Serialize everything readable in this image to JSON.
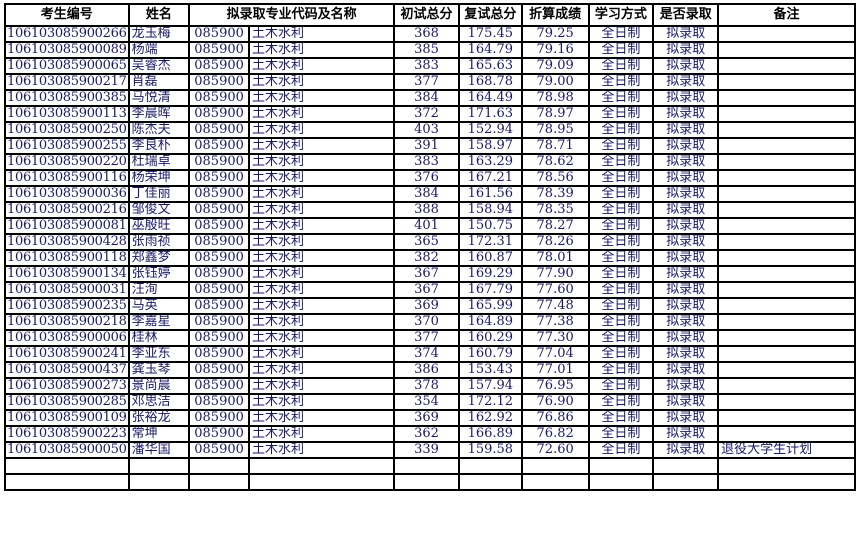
{
  "headers": [
    "考生编号",
    "姓名",
    "拟录取专业代码及名称",
    "初试总分",
    "复试总分",
    "折算成绩",
    "学习方式",
    "是否录取",
    "备注"
  ],
  "rows": [
    [
      "106103085900266",
      "龙玉梅",
      "085900",
      "土木水利",
      "368",
      "175.45",
      "79.25",
      "全日制",
      "拟录取",
      ""
    ],
    [
      "106103085900089",
      "杨端",
      "085900",
      "土木水利",
      "385",
      "164.79",
      "79.16",
      "全日制",
      "拟录取",
      ""
    ],
    [
      "106103085900065",
      "吴睿杰",
      "085900",
      "土木水利",
      "383",
      "165.63",
      "79.09",
      "全日制",
      "拟录取",
      ""
    ],
    [
      "106103085900217",
      "肖磊",
      "085900",
      "土木水利",
      "377",
      "168.78",
      "79.00",
      "全日制",
      "拟录取",
      ""
    ],
    [
      "106103085900385",
      "马悦清",
      "085900",
      "土木水利",
      "384",
      "164.49",
      "78.98",
      "全日制",
      "拟录取",
      ""
    ],
    [
      "106103085900113",
      "李晨晖",
      "085900",
      "土木水利",
      "372",
      "171.63",
      "78.97",
      "全日制",
      "拟录取",
      ""
    ],
    [
      "106103085900250",
      "陈杰夫",
      "085900",
      "土木水利",
      "403",
      "152.94",
      "78.95",
      "全日制",
      "拟录取",
      ""
    ],
    [
      "106103085900255",
      "李良朴",
      "085900",
      "土木水利",
      "391",
      "158.97",
      "78.71",
      "全日制",
      "拟录取",
      ""
    ],
    [
      "106103085900220",
      "杜瑞卓",
      "085900",
      "土木水利",
      "383",
      "163.29",
      "78.62",
      "全日制",
      "拟录取",
      ""
    ],
    [
      "106103085900116",
      "杨荣坤",
      "085900",
      "土木水利",
      "376",
      "167.21",
      "78.56",
      "全日制",
      "拟录取",
      ""
    ],
    [
      "106103085900036",
      "丁佳丽",
      "085900",
      "土木水利",
      "384",
      "161.56",
      "78.39",
      "全日制",
      "拟录取",
      ""
    ],
    [
      "106103085900216",
      "邹俊文",
      "085900",
      "土木水利",
      "388",
      "158.94",
      "78.35",
      "全日制",
      "拟录取",
      ""
    ],
    [
      "106103085900081",
      "巫殷旺",
      "085900",
      "土木水利",
      "401",
      "150.75",
      "78.27",
      "全日制",
      "拟录取",
      ""
    ],
    [
      "106103085900428",
      "张雨祯",
      "085900",
      "土木水利",
      "365",
      "172.31",
      "78.26",
      "全日制",
      "拟录取",
      ""
    ],
    [
      "106103085900118",
      "郑鑫梦",
      "085900",
      "土木水利",
      "382",
      "160.87",
      "78.01",
      "全日制",
      "拟录取",
      ""
    ],
    [
      "106103085900134",
      "张钰婷",
      "085900",
      "土木水利",
      "367",
      "169.29",
      "77.90",
      "全日制",
      "拟录取",
      ""
    ],
    [
      "106103085900031",
      "汪洵",
      "085900",
      "土木水利",
      "367",
      "167.79",
      "77.60",
      "全日制",
      "拟录取",
      ""
    ],
    [
      "106103085900235",
      "马英",
      "085900",
      "土木水利",
      "369",
      "165.99",
      "77.48",
      "全日制",
      "拟录取",
      ""
    ],
    [
      "106103085900218",
      "李嘉星",
      "085900",
      "土木水利",
      "370",
      "164.89",
      "77.38",
      "全日制",
      "拟录取",
      ""
    ],
    [
      "106103085900006",
      "桂林",
      "085900",
      "土木水利",
      "377",
      "160.29",
      "77.30",
      "全日制",
      "拟录取",
      ""
    ],
    [
      "106103085900241",
      "李亚东",
      "085900",
      "土木水利",
      "374",
      "160.79",
      "77.04",
      "全日制",
      "拟录取",
      ""
    ],
    [
      "106103085900437",
      "龚玉琴",
      "085900",
      "土木水利",
      "386",
      "153.43",
      "77.01",
      "全日制",
      "拟录取",
      ""
    ],
    [
      "106103085900273",
      "景尚晨",
      "085900",
      "土木水利",
      "378",
      "157.94",
      "76.95",
      "全日制",
      "拟录取",
      ""
    ],
    [
      "106103085900285",
      "邓思洁",
      "085900",
      "土木水利",
      "354",
      "172.12",
      "76.90",
      "全日制",
      "拟录取",
      ""
    ],
    [
      "106103085900109",
      "张裕龙",
      "085900",
      "土木水利",
      "369",
      "162.92",
      "76.86",
      "全日制",
      "拟录取",
      ""
    ],
    [
      "106103085900223",
      "常坤",
      "085900",
      "土木水利",
      "362",
      "166.89",
      "76.82",
      "全日制",
      "拟录取",
      ""
    ],
    [
      "106103085900050",
      "潘华国",
      "085900",
      "土木水利",
      "339",
      "159.58",
      "72.60",
      "全日制",
      "拟录取",
      "退役大学生计划"
    ],
    [
      "",
      "",
      "",
      "",
      "",
      "",
      "",
      "",
      "",
      ""
    ],
    [
      "",
      "",
      "",
      "",
      "",
      "",
      "",
      "",
      "",
      ""
    ]
  ]
}
